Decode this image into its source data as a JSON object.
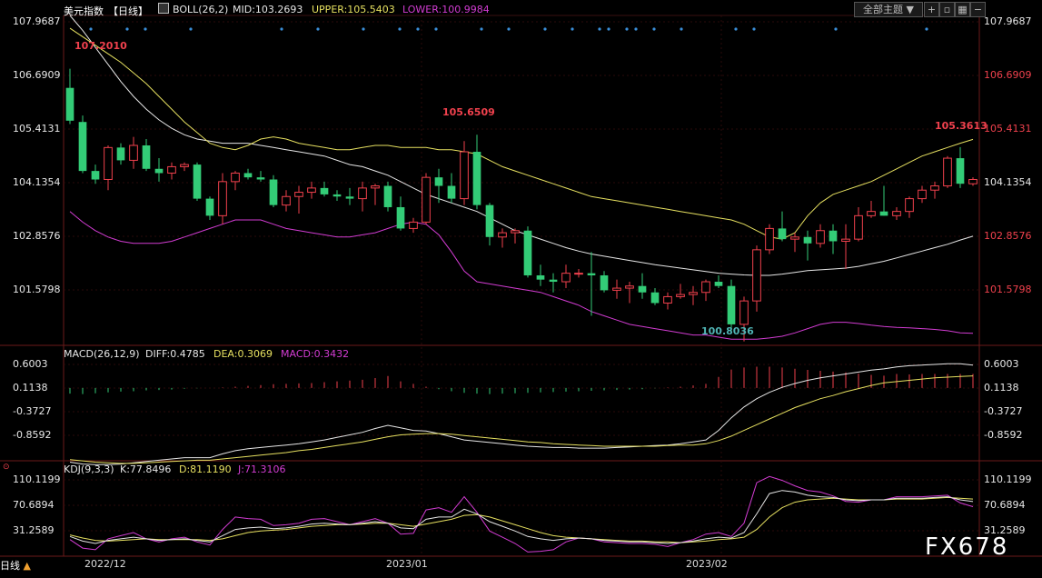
{
  "colors": {
    "up": "#f0414d",
    "down": "#33cc77",
    "mid": "#e6e6e6",
    "upper": "#e6e060",
    "lower": "#d23cd2",
    "dea": "#e6e060",
    "macd": "#d23cd2",
    "kdj_j": "#d23cd2",
    "kdj_d": "#e6e060",
    "grid": "#5a1a1a"
  },
  "header": {
    "title": "美元指数",
    "period_tag": "【日线】",
    "boll_label": "BOLL(26,2)",
    "mid_label": "MID:103.2693",
    "upper_label": "UPPER:105.5403",
    "lower_label": "LOWER:100.9984",
    "theme_button": "全部主题",
    "theme_caret": "▼"
  },
  "price_axis": {
    "ticks": [
      "107.9687",
      "106.6909",
      "105.4131",
      "104.1354",
      "102.8576",
      "101.5798"
    ]
  },
  "price_markers": {
    "high_a": "107.2010",
    "high_b": "105.6509",
    "high_c": "105.3613",
    "low": "100.8036"
  },
  "macd_panel": {
    "label": "MACD(26,12,9)",
    "diff_label": "DIFF:0.4785",
    "dea_label": "DEA:0.3069",
    "macd_label": "MACD:0.3432",
    "ticks": [
      "0.6003",
      "0.1138",
      "-0.3727",
      "-0.8592"
    ],
    "histogram": [
      -0.14,
      -0.15,
      -0.13,
      -0.11,
      -0.09,
      -0.08,
      -0.06,
      -0.05,
      -0.04,
      -0.02,
      -0.01,
      0.0,
      0.01,
      0.03,
      0.05,
      0.07,
      0.09,
      0.1,
      0.11,
      0.12,
      0.14,
      0.16,
      0.18,
      0.2,
      0.24,
      0.29,
      0.16,
      0.1,
      0.03,
      -0.03,
      -0.08,
      -0.12,
      -0.14,
      -0.15,
      -0.14,
      -0.13,
      -0.12,
      -0.11,
      -0.1,
      -0.09,
      -0.08,
      -0.07,
      -0.06,
      -0.05,
      -0.04,
      -0.03,
      -0.01,
      0.01,
      0.03,
      0.06,
      0.1,
      0.27,
      0.45,
      0.5,
      0.52,
      0.52,
      0.5,
      0.47,
      0.44,
      0.42,
      0.4,
      0.38,
      0.35,
      0.32,
      0.3,
      0.34,
      0.33,
      0.34,
      0.34,
      0.34,
      0.34,
      0.34
    ]
  },
  "kdj_panel": {
    "label": "KDJ(9,3,3)",
    "k_label": "K:77.8496",
    "d_label": "D:81.1190",
    "j_label": "J:71.3106",
    "ticks": [
      "110.1199",
      "70.6894",
      "31.2589"
    ]
  },
  "x_axis": {
    "labels": [
      "2022/12",
      "2023/01",
      "2023/02"
    ]
  },
  "footer": {
    "period_button": "日线",
    "period_caret": "▲",
    "watermark": "FX678"
  },
  "chart_data": {
    "type": "candlestick",
    "ylim": [
      100.75,
      108.45
    ],
    "candles": [
      [
        106.75,
        107.2,
        105.9,
        105.98
      ],
      [
        105.95,
        106.1,
        104.75,
        104.8
      ],
      [
        104.8,
        104.95,
        104.5,
        104.6
      ],
      [
        104.6,
        105.4,
        104.35,
        105.35
      ],
      [
        105.35,
        105.45,
        104.95,
        105.05
      ],
      [
        105.05,
        105.6,
        104.85,
        105.4
      ],
      [
        105.4,
        105.55,
        104.8,
        104.85
      ],
      [
        104.85,
        105.1,
        104.55,
        104.75
      ],
      [
        104.75,
        105.0,
        104.6,
        104.9
      ],
      [
        104.9,
        105.0,
        104.8,
        104.95
      ],
      [
        104.95,
        105.0,
        104.1,
        104.15
      ],
      [
        104.15,
        104.2,
        103.65,
        103.75
      ],
      [
        103.75,
        104.75,
        103.55,
        104.55
      ],
      [
        104.55,
        104.8,
        104.35,
        104.75
      ],
      [
        104.75,
        104.85,
        104.6,
        104.65
      ],
      [
        104.65,
        104.8,
        104.55,
        104.6
      ],
      [
        104.6,
        104.7,
        103.95,
        104.0
      ],
      [
        104.0,
        104.35,
        103.85,
        104.2
      ],
      [
        104.2,
        104.45,
        103.8,
        104.3
      ],
      [
        104.3,
        104.55,
        104.15,
        104.4
      ],
      [
        104.4,
        104.55,
        104.2,
        104.25
      ],
      [
        104.25,
        104.35,
        104.1,
        104.2
      ],
      [
        104.2,
        104.4,
        104.0,
        104.15
      ],
      [
        104.15,
        104.55,
        103.85,
        104.4
      ],
      [
        104.4,
        104.5,
        104.0,
        104.45
      ],
      [
        104.45,
        104.55,
        103.85,
        103.95
      ],
      [
        103.95,
        104.2,
        103.4,
        103.45
      ],
      [
        103.45,
        103.7,
        103.35,
        103.6
      ],
      [
        103.6,
        104.75,
        103.55,
        104.65
      ],
      [
        104.65,
        104.85,
        104.05,
        104.45
      ],
      [
        104.45,
        104.75,
        104.05,
        104.15
      ],
      [
        104.15,
        105.5,
        104.0,
        105.25
      ],
      [
        105.25,
        105.65,
        103.9,
        104.0
      ],
      [
        104.0,
        104.05,
        103.05,
        103.25
      ],
      [
        103.25,
        103.45,
        103.0,
        103.35
      ],
      [
        103.35,
        103.45,
        103.1,
        103.4
      ],
      [
        103.4,
        103.5,
        102.3,
        102.35
      ],
      [
        102.35,
        102.6,
        102.1,
        102.25
      ],
      [
        102.25,
        102.4,
        101.95,
        102.2
      ],
      [
        102.2,
        102.6,
        102.05,
        102.4
      ],
      [
        102.4,
        102.5,
        102.3,
        102.4
      ],
      [
        102.4,
        102.9,
        101.4,
        102.35
      ],
      [
        102.35,
        102.45,
        101.95,
        102.0
      ],
      [
        102.0,
        102.25,
        101.8,
        102.05
      ],
      [
        102.05,
        102.2,
        101.7,
        102.1
      ],
      [
        102.1,
        102.4,
        101.8,
        101.95
      ],
      [
        101.95,
        102.05,
        101.65,
        101.7
      ],
      [
        101.7,
        101.95,
        101.55,
        101.85
      ],
      [
        101.85,
        102.15,
        101.8,
        101.9
      ],
      [
        101.9,
        102.1,
        101.65,
        101.95
      ],
      [
        101.95,
        102.25,
        101.75,
        102.2
      ],
      [
        102.2,
        102.35,
        102.05,
        102.1
      ],
      [
        102.1,
        102.25,
        101.0,
        101.2
      ],
      [
        101.2,
        101.85,
        100.8,
        101.75
      ],
      [
        101.75,
        103.05,
        101.5,
        102.95
      ],
      [
        102.95,
        103.55,
        102.85,
        103.45
      ],
      [
        103.45,
        103.85,
        103.15,
        103.2
      ],
      [
        103.2,
        103.35,
        102.9,
        103.25
      ],
      [
        103.25,
        103.4,
        102.7,
        103.1
      ],
      [
        103.1,
        103.55,
        103.0,
        103.4
      ],
      [
        103.4,
        103.55,
        102.85,
        103.15
      ],
      [
        103.15,
        103.55,
        102.5,
        103.2
      ],
      [
        103.2,
        103.95,
        103.15,
        103.75
      ],
      [
        103.75,
        104.1,
        103.7,
        103.85
      ],
      [
        103.85,
        104.45,
        103.75,
        103.75
      ],
      [
        103.75,
        103.95,
        103.65,
        103.85
      ],
      [
        103.85,
        104.2,
        103.7,
        104.15
      ],
      [
        104.15,
        104.45,
        104.05,
        104.35
      ],
      [
        104.35,
        104.55,
        104.15,
        104.45
      ],
      [
        104.45,
        105.15,
        104.4,
        105.1
      ],
      [
        105.1,
        105.36,
        104.4,
        104.5
      ],
      [
        104.5,
        104.65,
        104.45,
        104.6
      ]
    ],
    "series": [
      {
        "values": [
          108.45,
          108.1,
          107.7,
          107.3,
          106.9,
          106.55,
          106.25,
          106.0,
          105.8,
          105.65,
          105.55,
          105.5,
          105.45,
          105.45,
          105.45,
          105.4,
          105.35,
          105.3,
          105.25,
          105.2,
          105.15,
          105.05,
          104.95,
          104.9,
          104.8,
          104.7,
          104.55,
          104.4,
          104.25,
          104.15,
          104.05,
          103.95,
          103.85,
          103.7,
          103.55,
          103.4,
          103.3,
          103.2,
          103.1,
          103.0,
          102.92,
          102.85,
          102.8,
          102.75,
          102.7,
          102.65,
          102.6,
          102.56,
          102.52,
          102.48,
          102.44,
          102.4,
          102.38,
          102.36,
          102.35,
          102.35,
          102.38,
          102.42,
          102.46,
          102.48,
          102.5,
          102.52,
          102.56,
          102.62,
          102.68,
          102.76,
          102.84,
          102.92,
          103.0,
          103.08,
          103.18,
          103.27
        ]
      },
      {
        "values": [
          108.15,
          107.95,
          107.75,
          107.55,
          107.35,
          107.1,
          106.85,
          106.55,
          106.25,
          105.95,
          105.7,
          105.45,
          105.35,
          105.3,
          105.4,
          105.55,
          105.6,
          105.55,
          105.45,
          105.4,
          105.35,
          105.3,
          105.3,
          105.35,
          105.4,
          105.4,
          105.35,
          105.35,
          105.35,
          105.3,
          105.3,
          105.25,
          105.2,
          105.05,
          104.9,
          104.8,
          104.7,
          104.6,
          104.5,
          104.4,
          104.3,
          104.2,
          104.15,
          104.1,
          104.05,
          104.0,
          103.95,
          103.9,
          103.85,
          103.8,
          103.75,
          103.7,
          103.65,
          103.55,
          103.4,
          103.25,
          103.2,
          103.35,
          103.75,
          104.05,
          104.25,
          104.35,
          104.45,
          104.55,
          104.7,
          104.85,
          105.0,
          105.15,
          105.25,
          105.35,
          105.45,
          105.54
        ]
      },
      {
        "values": [
          103.85,
          103.6,
          103.4,
          103.25,
          103.15,
          103.1,
          103.1,
          103.1,
          103.15,
          103.25,
          103.35,
          103.45,
          103.55,
          103.65,
          103.65,
          103.65,
          103.55,
          103.45,
          103.4,
          103.35,
          103.3,
          103.25,
          103.25,
          103.3,
          103.35,
          103.45,
          103.55,
          103.6,
          103.55,
          103.3,
          102.9,
          102.45,
          102.2,
          102.15,
          102.1,
          102.05,
          102.0,
          101.95,
          101.85,
          101.75,
          101.65,
          101.5,
          101.4,
          101.3,
          101.2,
          101.15,
          101.1,
          101.05,
          101.0,
          100.95,
          100.95,
          100.9,
          100.85,
          100.85,
          100.85,
          100.88,
          100.92,
          101.0,
          101.1,
          101.2,
          101.25,
          101.25,
          101.22,
          101.18,
          101.15,
          101.13,
          101.12,
          101.1,
          101.08,
          101.05,
          101.0,
          100.99
        ]
      }
    ],
    "macd_ylim": [
      -1.0,
      0.72
    ],
    "macd_diff": [
      -1.05,
      -1.08,
      -1.09,
      -1.09,
      -1.08,
      -1.06,
      -1.04,
      -1.02,
      -1.0,
      -0.98,
      -0.98,
      -0.98,
      -0.92,
      -0.87,
      -0.84,
      -0.82,
      -0.8,
      -0.78,
      -0.76,
      -0.73,
      -0.7,
      -0.66,
      -0.62,
      -0.58,
      -0.52,
      -0.47,
      -0.51,
      -0.55,
      -0.56,
      -0.6,
      -0.65,
      -0.7,
      -0.72,
      -0.74,
      -0.76,
      -0.78,
      -0.8,
      -0.81,
      -0.82,
      -0.82,
      -0.83,
      -0.83,
      -0.83,
      -0.82,
      -0.81,
      -0.8,
      -0.79,
      -0.78,
      -0.76,
      -0.73,
      -0.7,
      -0.55,
      -0.35,
      -0.18,
      -0.05,
      0.05,
      0.13,
      0.19,
      0.24,
      0.28,
      0.31,
      0.34,
      0.37,
      0.4,
      0.42,
      0.45,
      0.47,
      0.48,
      0.49,
      0.5,
      0.5,
      0.48
    ],
    "macd_dea": [
      -1.01,
      -1.03,
      -1.05,
      -1.06,
      -1.07,
      -1.07,
      -1.06,
      -1.05,
      -1.04,
      -1.03,
      -1.02,
      -1.02,
      -1.0,
      -0.98,
      -0.96,
      -0.94,
      -0.92,
      -0.9,
      -0.87,
      -0.85,
      -0.82,
      -0.79,
      -0.76,
      -0.73,
      -0.69,
      -0.65,
      -0.62,
      -0.61,
      -0.6,
      -0.6,
      -0.61,
      -0.63,
      -0.65,
      -0.67,
      -0.69,
      -0.71,
      -0.73,
      -0.74,
      -0.76,
      -0.77,
      -0.78,
      -0.79,
      -0.8,
      -0.8,
      -0.8,
      -0.8,
      -0.8,
      -0.79,
      -0.78,
      -0.78,
      -0.76,
      -0.71,
      -0.64,
      -0.55,
      -0.46,
      -0.37,
      -0.28,
      -0.19,
      -0.12,
      -0.05,
      0.0,
      0.06,
      0.11,
      0.16,
      0.2,
      0.22,
      0.24,
      0.26,
      0.28,
      0.29,
      0.3,
      0.31
    ],
    "kdj_ylim": [
      10,
      115
    ],
    "kdj_k": [
      33,
      27,
      24,
      28,
      30,
      32,
      30,
      28,
      29,
      30,
      28,
      26,
      34,
      42,
      44,
      45,
      43,
      44,
      46,
      49,
      50,
      49,
      48,
      50,
      52,
      50,
      44,
      43,
      55,
      58,
      58,
      68,
      62,
      52,
      46,
      40,
      33,
      30,
      28,
      30,
      31,
      30,
      28,
      27,
      26,
      26,
      25,
      24,
      25,
      27,
      30,
      32,
      31,
      38,
      62,
      88,
      92,
      90,
      86,
      84,
      83,
      80,
      79,
      80,
      80,
      82,
      82,
      82,
      83,
      84,
      80,
      77.8
    ],
    "kdj_d": [
      35,
      31,
      28,
      27,
      28,
      29,
      30,
      29,
      29,
      29,
      29,
      28,
      30,
      34,
      38,
      40,
      41,
      42,
      44,
      46,
      47,
      48,
      48,
      49,
      50,
      50,
      48,
      46,
      49,
      52,
      55,
      60,
      61,
      58,
      53,
      48,
      43,
      38,
      34,
      32,
      31,
      30,
      29,
      28,
      27,
      27,
      26,
      26,
      25,
      26,
      27,
      29,
      30,
      32,
      42,
      58,
      70,
      77,
      80,
      81,
      82,
      81,
      80,
      80,
      80,
      81,
      81,
      81,
      82,
      83,
      82,
      81.1
    ],
    "kdj_j": [
      29,
      18,
      16,
      30,
      34,
      38,
      30,
      26,
      30,
      32,
      26,
      22,
      42,
      58,
      56,
      55,
      47,
      48,
      50,
      55,
      56,
      52,
      48,
      52,
      56,
      50,
      36,
      37,
      67,
      70,
      64,
      84,
      64,
      40,
      32,
      24,
      13,
      14,
      16,
      26,
      31,
      30,
      26,
      25,
      24,
      24,
      23,
      20,
      25,
      29,
      36,
      38,
      33,
      50,
      102,
      110,
      105,
      98,
      92,
      90,
      85,
      78,
      77,
      80,
      80,
      84,
      84,
      84,
      85,
      86,
      76,
      71.3
    ]
  }
}
